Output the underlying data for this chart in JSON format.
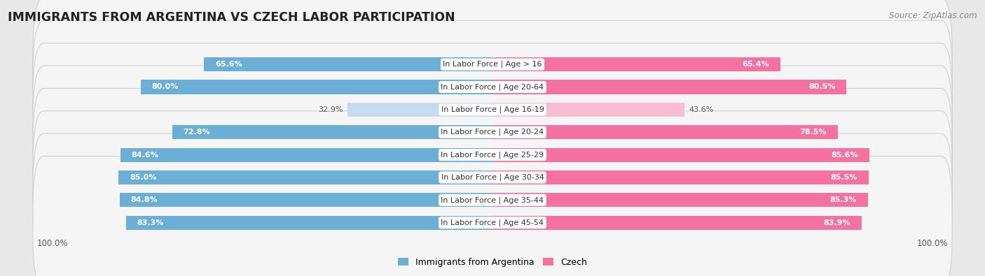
{
  "title": "IMMIGRANTS FROM ARGENTINA VS CZECH LABOR PARTICIPATION",
  "source": "Source: ZipAtlas.com",
  "categories": [
    "In Labor Force | Age > 16",
    "In Labor Force | Age 20-64",
    "In Labor Force | Age 16-19",
    "In Labor Force | Age 20-24",
    "In Labor Force | Age 25-29",
    "In Labor Force | Age 30-34",
    "In Labor Force | Age 35-44",
    "In Labor Force | Age 45-54"
  ],
  "argentina_values": [
    65.6,
    80.0,
    32.9,
    72.8,
    84.6,
    85.0,
    84.8,
    83.3
  ],
  "czech_values": [
    65.4,
    80.5,
    43.6,
    78.5,
    85.6,
    85.5,
    85.3,
    83.9
  ],
  "argentina_color": "#6baed6",
  "argentina_light_color": "#c6dcee",
  "czech_color": "#f472a0",
  "czech_light_color": "#f9bdd3",
  "bg_color": "#e8e8e8",
  "row_bg_color": "#f5f5f5",
  "row_border_color": "#d0d0d0",
  "bar_height": 0.62,
  "max_value": 100.0,
  "legend_argentina": "Immigrants from Argentina",
  "legend_czech": "Czech",
  "title_fontsize": 12.5,
  "source_fontsize": 8.5,
  "label_fontsize": 8,
  "category_fontsize": 8,
  "legend_fontsize": 9,
  "light_threshold": 60
}
